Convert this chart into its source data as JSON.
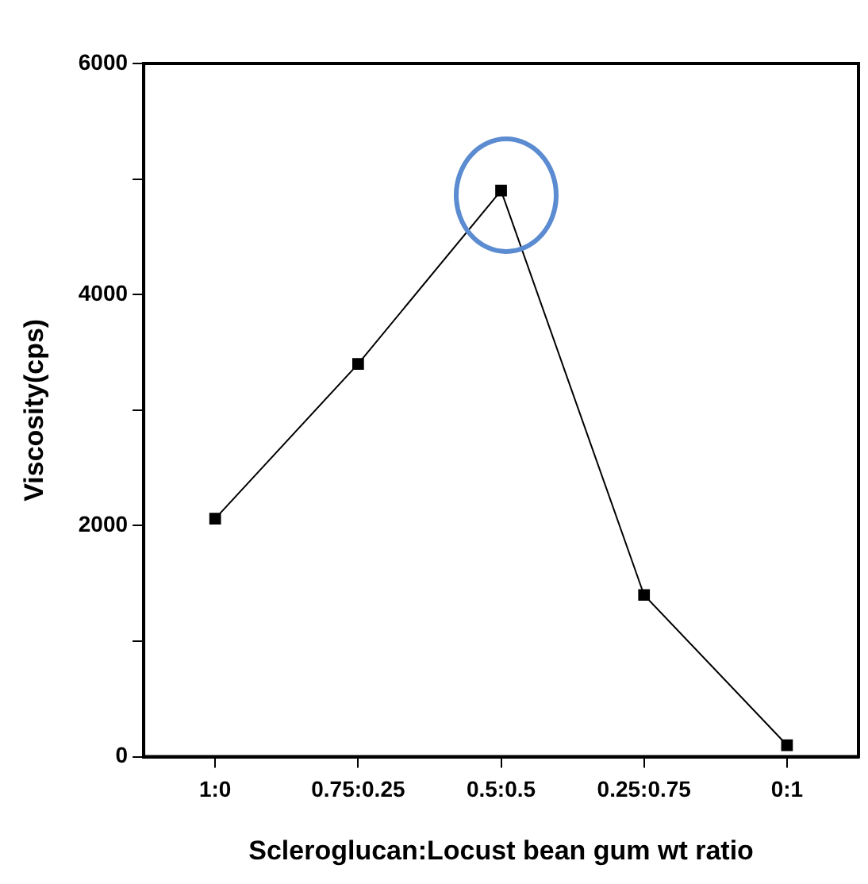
{
  "chart_data": {
    "type": "line",
    "xlabel": "Scleroglucan:Locust bean gum wt ratio",
    "ylabel": "Viscosity(cps)",
    "categories": [
      "1:0",
      "0.75:0.25",
      "0.5:0.5",
      "0.25:0.75",
      "0:1"
    ],
    "series": [
      {
        "color": "#000000",
        "values": [
          2060,
          3400,
          4900,
          1400,
          100
        ]
      }
    ],
    "ylim": [
      0,
      6000
    ],
    "yticks": [
      0,
      {
        "value": 1000,
        "label": null
      },
      2000,
      {
        "value": 3000,
        "label": null
      },
      4000,
      {
        "value": 5000,
        "label": null
      },
      6000
    ],
    "grid": false,
    "legend": false,
    "marker": "square",
    "line_style": "solid"
  }
}
